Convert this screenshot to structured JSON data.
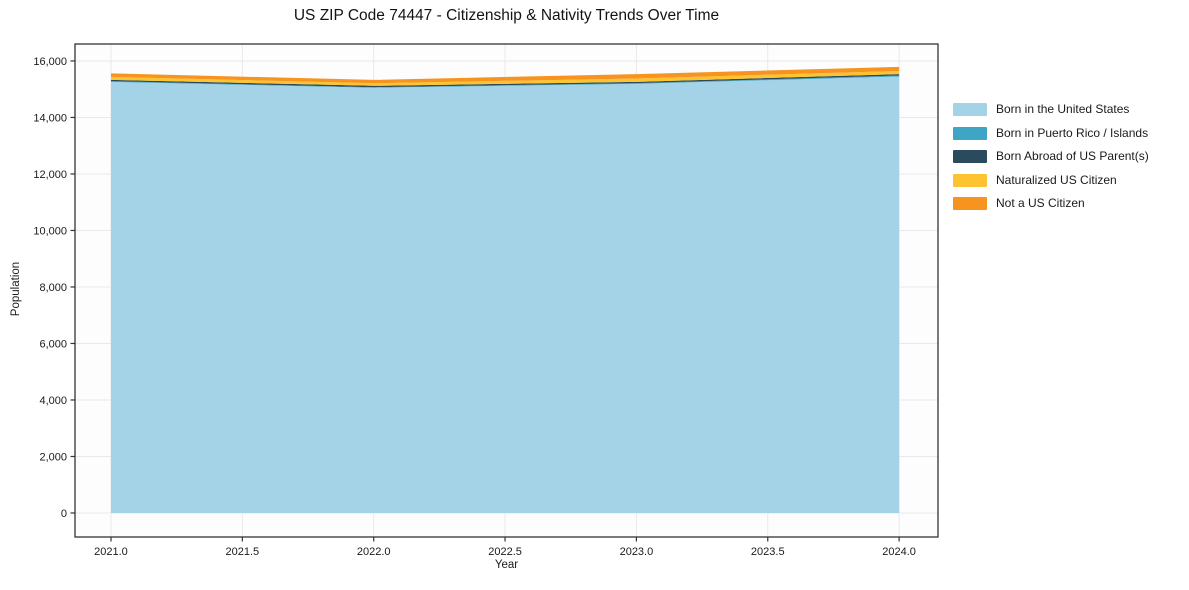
{
  "chart_data": {
    "type": "area",
    "stacked": true,
    "title": "US ZIP Code 74447 - Citizenship & Nativity Trends Over Time",
    "xlabel": "Year",
    "ylabel": "Population",
    "x": [
      2021,
      2022,
      2023,
      2024
    ],
    "series": [
      {
        "name": "Born in the United States",
        "color": "#A4D3E8",
        "values": [
          15260,
          15050,
          15190,
          15450
        ]
      },
      {
        "name": "Born in Puerto Rico / Islands",
        "color": "#3FA5C4",
        "values": [
          25,
          20,
          25,
          35
        ]
      },
      {
        "name": "Born Abroad of US Parent(s)",
        "color": "#2A4B5D",
        "values": [
          45,
          50,
          45,
          50
        ]
      },
      {
        "name": "Naturalized US Citizen",
        "color": "#FDC330",
        "values": [
          105,
          90,
          120,
          110
        ]
      },
      {
        "name": "Not a US Citizen",
        "color": "#F6941F",
        "values": [
          125,
          120,
          155,
          145
        ]
      }
    ],
    "xticks": {
      "values": [
        2021.0,
        2021.5,
        2022.0,
        2022.5,
        2023.0,
        2023.5,
        2024.0
      ],
      "labels": [
        "2021.0",
        "2021.5",
        "2022.0",
        "2022.5",
        "2023.0",
        "2023.5",
        "2024.0"
      ]
    },
    "yticks": {
      "values": [
        0,
        2000,
        4000,
        6000,
        8000,
        10000,
        12000,
        14000,
        16000
      ],
      "labels": [
        "0",
        "2,000",
        "4,000",
        "6,000",
        "8,000",
        "10,000",
        "12,000",
        "14,000",
        "16,000"
      ]
    },
    "xlim": [
      2020.863,
      2024.148
    ],
    "ylim": [
      -850,
      16600
    ],
    "grid": true,
    "legend_position": "right-outside"
  },
  "colors": {
    "grid": "#e9e9e9",
    "spine": "#333333",
    "tick_text": "#1a1a1a",
    "plot_background": "#fdfdfd",
    "figure_background": "#ffffff"
  }
}
